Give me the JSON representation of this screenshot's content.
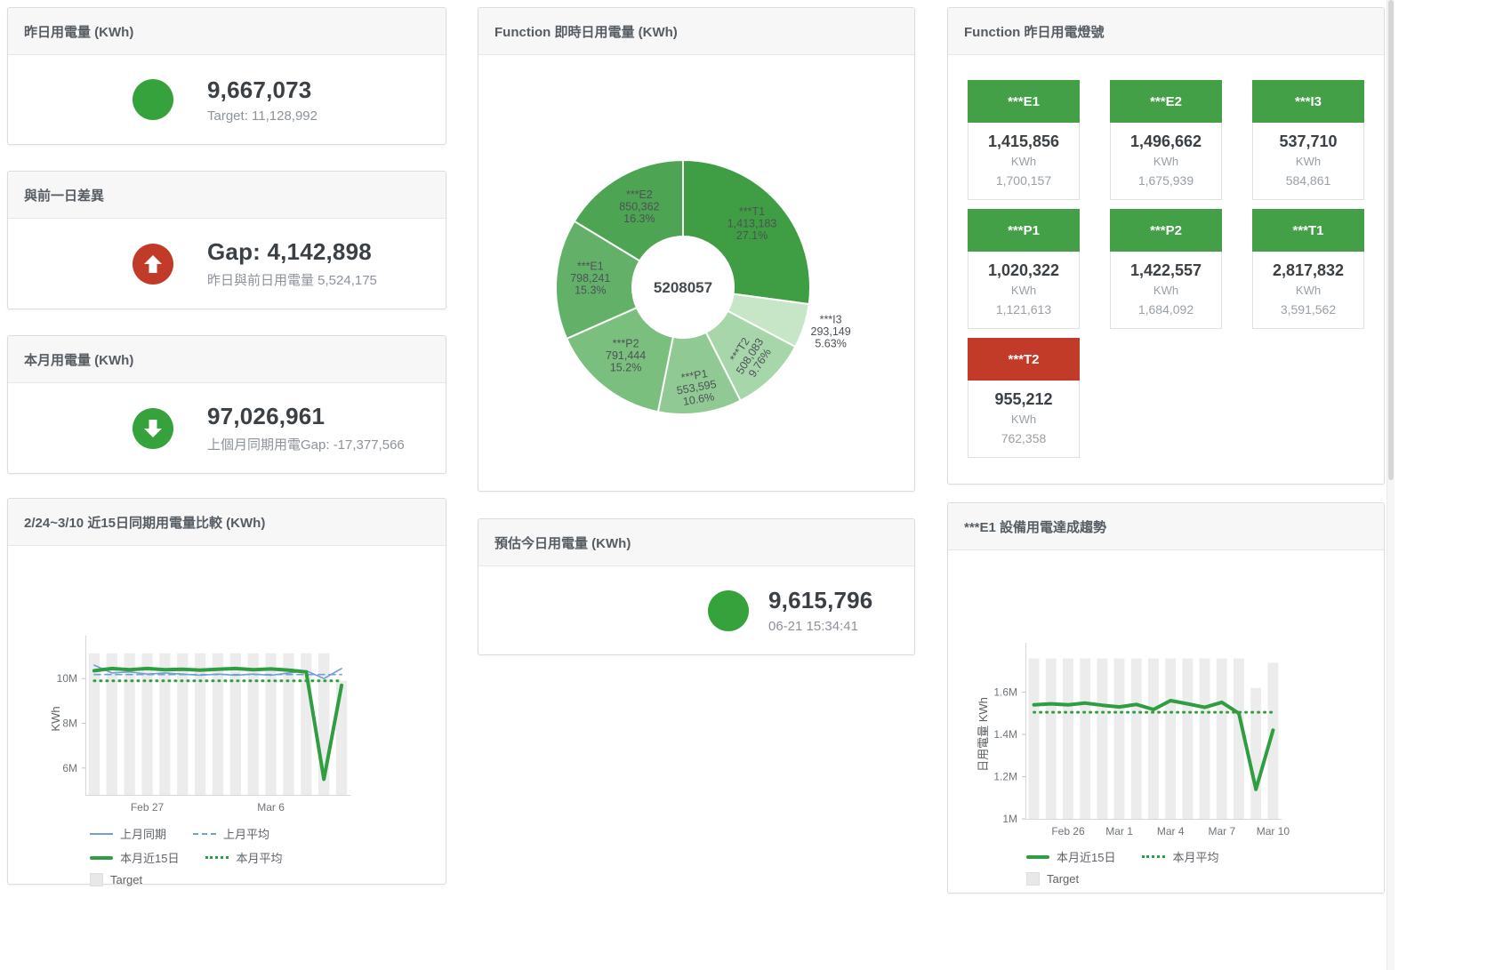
{
  "colors": {
    "green": "#36a23c",
    "tile_green": "#43a047",
    "red": "#c13b28",
    "blue": "#6f9fd4",
    "bar_gray": "#ececec"
  },
  "panels": {
    "yesterday": {
      "title": "昨日用電量 (KWh)",
      "value": "9,667,073",
      "subtitle": "Target: 11,128,992"
    },
    "gap": {
      "title": "與前一日差異",
      "value": "Gap: 4,142,898",
      "subtitle": "昨日與前日用電量 5,524,175"
    },
    "month": {
      "title": "本月用電量 (KWh)",
      "value": "97,026,961",
      "subtitle": "上個月同期用電Gap: -17,377,566"
    },
    "estimate": {
      "title": "預估今日用電量 (KWh)",
      "value": "9,615,796",
      "subtitle": "06-21 15:34:41"
    },
    "donut": {
      "title": "Function 即時日用電量 (KWh)"
    },
    "compare": {
      "title": "2/24~3/10 近15日同期用電量比較 (KWh)"
    },
    "trend": {
      "title": "***E1 設備用電達成趨勢"
    },
    "lights": {
      "title": "Function 昨日用電燈號",
      "unit": "KWh",
      "tiles": [
        {
          "name": "***E1",
          "value": "1,415,856",
          "target": "1,700,157",
          "status": "green"
        },
        {
          "name": "***E2",
          "value": "1,496,662",
          "target": "1,675,939",
          "status": "green"
        },
        {
          "name": "***I3",
          "value": "537,710",
          "target": "584,861",
          "status": "green"
        },
        {
          "name": "***P1",
          "value": "1,020,322",
          "target": "1,121,613",
          "status": "green"
        },
        {
          "name": "***P2",
          "value": "1,422,557",
          "target": "1,684,092",
          "status": "green"
        },
        {
          "name": "***T1",
          "value": "2,817,832",
          "target": "3,591,562",
          "status": "green"
        },
        {
          "name": "***T2",
          "value": "955,212",
          "target": "762,358",
          "status": "red"
        }
      ]
    }
  },
  "chart_data": [
    {
      "id": "donut",
      "type": "pie",
      "title": "Function 即時日用電量 (KWh)",
      "center_label": "5208057",
      "slices": [
        {
          "name": "***T1",
          "value": 1413183,
          "pct": "27.1%",
          "share": 27.1,
          "color": "#3f9e44",
          "label_r": 0.72,
          "rot": 0
        },
        {
          "name": "***I3",
          "value": 293149,
          "pct": "5.63%",
          "share": 5.63,
          "color": "#c6e6c7",
          "label_r": 1.22,
          "rot": 0
        },
        {
          "name": "***T2",
          "value": 508083,
          "pct": "9.76%",
          "share": 9.76,
          "color": "#a8d6ab",
          "label_r": 0.78,
          "rot": -57
        },
        {
          "name": "***P1",
          "value": 553595,
          "pct": "10.6%",
          "share": 10.6,
          "color": "#90c993",
          "label_r": 0.82,
          "rot": -10
        },
        {
          "name": "***P2",
          "value": 791444,
          "pct": "15.2%",
          "share": 15.2,
          "color": "#7abf7e",
          "label_r": 0.72,
          "rot": 0
        },
        {
          "name": "***E1",
          "value": 798241,
          "pct": "15.3%",
          "share": 15.3,
          "color": "#63b168",
          "label_r": 0.73,
          "rot": 0
        },
        {
          "name": "***E2",
          "value": 850362,
          "pct": "16.3%",
          "share": 16.3,
          "color": "#4da452",
          "label_r": 0.7,
          "rot": 0
        }
      ]
    },
    {
      "id": "compare",
      "type": "line",
      "title": "2/24~3/10 近15日同期用電量比較 (KWh)",
      "ylabel": "KWh",
      "ylim": [
        4800000,
        11600000
      ],
      "n": 15,
      "yticks": [
        {
          "v": 6000000,
          "label": "6M"
        },
        {
          "v": 8000000,
          "label": "8M"
        },
        {
          "v": 10000000,
          "label": "10M"
        }
      ],
      "xticks": [
        {
          "i": 3,
          "label": "Feb 27"
        },
        {
          "i": 10,
          "label": "Mar 6"
        }
      ],
      "bars": {
        "name": "Target",
        "color": "#ececec",
        "values": [
          11130000,
          11130000,
          11130000,
          11130000,
          11130000,
          11130000,
          11130000,
          11130000,
          11130000,
          11130000,
          11130000,
          11130000,
          11130000,
          11130000,
          9900000
        ]
      },
      "series": [
        {
          "name": "上月同期",
          "color": "#6f9fd4",
          "width": 1.6,
          "dash": "",
          "values": [
            10600000,
            10250000,
            10300000,
            10200000,
            10250000,
            10200000,
            10150000,
            10200000,
            10150000,
            10200000,
            10150000,
            10250000,
            10350000,
            10000000,
            10450000
          ]
        },
        {
          "name": "上月平均",
          "color": "#6f9fd4",
          "width": 1.6,
          "dash": "7,5",
          "values": [
            10180000,
            10180000,
            10180000,
            10180000,
            10180000,
            10180000,
            10180000,
            10180000,
            10180000,
            10180000,
            10180000,
            10180000,
            10180000,
            10180000,
            10180000
          ]
        },
        {
          "name": "本月平均",
          "color": "#2f9e41",
          "width": 3,
          "dash": "1,6",
          "values": [
            9900000,
            9900000,
            9900000,
            9900000,
            9900000,
            9900000,
            9900000,
            9900000,
            9900000,
            9900000,
            9900000,
            9900000,
            9900000,
            9900000,
            9900000
          ]
        },
        {
          "name": "本月近15日",
          "color": "#2f9e41",
          "width": 4,
          "dash": "",
          "values": [
            10350000,
            10450000,
            10400000,
            10450000,
            10400000,
            10420000,
            10380000,
            10420000,
            10450000,
            10400000,
            10430000,
            10380000,
            10300000,
            5500000,
            9700000
          ]
        }
      ],
      "legend_rows": [
        [
          {
            "label": "上月同期",
            "swatch": "line",
            "color": "#6f9fd4"
          },
          {
            "label": "上月平均",
            "swatch": "dash",
            "color": "#6f9fd4"
          }
        ],
        [
          {
            "label": "本月近15日",
            "swatch": "thick",
            "color": "#2f9e41"
          },
          {
            "label": "本月平均",
            "swatch": "dot",
            "color": "#2f9e41"
          }
        ],
        [
          {
            "label": "Target",
            "swatch": "square",
            "color": "#e8e8e8"
          }
        ]
      ]
    },
    {
      "id": "trend",
      "type": "line",
      "title": "***E1 設備用電達成趨勢",
      "ylabel": "日用電量 KWh",
      "ylim": [
        1000000,
        1800000
      ],
      "n": 15,
      "yticks": [
        {
          "v": 1000000,
          "label": "1M"
        },
        {
          "v": 1200000,
          "label": "1.2M"
        },
        {
          "v": 1400000,
          "label": "1.4M"
        },
        {
          "v": 1600000,
          "label": "1.6M"
        }
      ],
      "xticks": [
        {
          "i": 2,
          "label": "Feb 26"
        },
        {
          "i": 5,
          "label": "Mar 1"
        },
        {
          "i": 8,
          "label": "Mar 4"
        },
        {
          "i": 11,
          "label": "Mar 7"
        },
        {
          "i": 14,
          "label": "Mar 10"
        }
      ],
      "bars": {
        "name": "Target",
        "color": "#ececec",
        "values": [
          1760000,
          1760000,
          1760000,
          1760000,
          1760000,
          1760000,
          1760000,
          1760000,
          1760000,
          1760000,
          1760000,
          1760000,
          1760000,
          1620000,
          1740000
        ]
      },
      "series": [
        {
          "name": "本月平均",
          "color": "#2f9e41",
          "width": 3,
          "dash": "1,6",
          "values": [
            1505000,
            1505000,
            1505000,
            1505000,
            1505000,
            1505000,
            1505000,
            1505000,
            1505000,
            1505000,
            1505000,
            1505000,
            1505000,
            1505000,
            1505000
          ]
        },
        {
          "name": "本月近15日",
          "color": "#2f9e41",
          "width": 4,
          "dash": "",
          "values": [
            1540000,
            1545000,
            1540000,
            1548000,
            1538000,
            1530000,
            1542000,
            1518000,
            1560000,
            1545000,
            1528000,
            1552000,
            1500000,
            1140000,
            1420000
          ]
        }
      ],
      "legend_rows": [
        [
          {
            "label": "本月近15日",
            "swatch": "thick",
            "color": "#2f9e41"
          },
          {
            "label": "本月平均",
            "swatch": "dot",
            "color": "#2f9e41"
          }
        ],
        [
          {
            "label": "Target",
            "swatch": "square",
            "color": "#e8e8e8"
          }
        ]
      ]
    }
  ]
}
